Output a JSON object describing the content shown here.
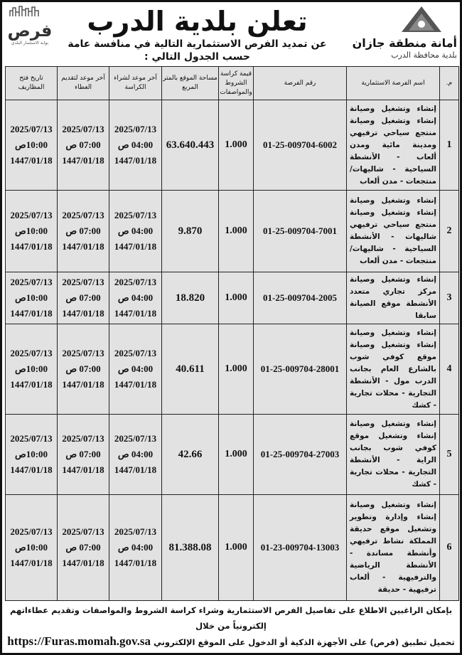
{
  "header": {
    "title": "تعلن بلدية الدرب",
    "subtitle": "عن تمديد الفرص الاستثمارية التالية في منافسة عامة حسب الجدول التالي :",
    "logo_right_name": "أمانة منطقة جازان",
    "logo_right_sub": "بلدية محافظة الدرب",
    "logo_left_name": "فرص",
    "logo_left_sub": "بوابة الاستثمار البلدي"
  },
  "table": {
    "columns": [
      "م.",
      "اسم الفرصة الاستثمارية",
      "رقم الفرصة",
      "قيمة كراسة الشروط والمواصفات",
      "مساحة الموقع بالمتر المربع",
      "آخر موعد لشراء الكراسة",
      "آخر موعد لتقديم العطاء",
      "تاريخ فتح المظاريف"
    ],
    "rows": [
      {
        "no": "1",
        "name": "إنشاء وتشغيل وصيانة إنشاء وتشغيل وصيانة منتجع سياحي ترفيهي ومدينة مائية ومدن ألعاب - الأنشطة السياحية - شاليهات/ منتجعات - مدن ألعاب",
        "id": "01-25-009704-6002",
        "price": "1.000",
        "area": "63.640.443",
        "buy": [
          "2025/07/13",
          "04:00 ص",
          "1447/01/18"
        ],
        "submit": [
          "2025/07/13",
          "07:00 ص",
          "1447/01/18"
        ],
        "open": [
          "2025/07/13",
          "10:00ص",
          "1447/01/18"
        ]
      },
      {
        "no": "2",
        "name": "إنشاء وتشغيل وصيانة إنشاء وتشغيل وصيانة منتجع سياحي ترفيهي شاليهات - الأنشطة السياحية - شاليهات/ منتجعات - مدن ألعاب",
        "id": "01-25-009704-7001",
        "price": "1.000",
        "area": "9.870",
        "buy": [
          "2025/07/13",
          "04:00 ص",
          "1447/01/18"
        ],
        "submit": [
          "2025/07/13",
          "07:00 ص",
          "1447/01/18"
        ],
        "open": [
          "2025/07/13",
          "10:00ص",
          "1447/01/18"
        ]
      },
      {
        "no": "3",
        "name": "إنشاء وتشغيل وصيانة مركز تجاري متعدد الأنشطة موقع الصيانة سابقا",
        "id": "01-25-009704-2005",
        "price": "1.000",
        "area": "18.820",
        "buy": [
          "2025/07/13",
          "04:00 ص",
          "1447/01/18"
        ],
        "submit": [
          "2025/07/13",
          "07:00 ص",
          "1447/01/18"
        ],
        "open": [
          "2025/07/13",
          "10:00ص",
          "1447/01/18"
        ]
      },
      {
        "no": "4",
        "name": "إنشاء وتشغيل وصيانة إنشاء وتشغيل وصيانة موقع كوفي شوب بالشارع العام بجانب الدرب مول - الأنشطة التجارية - محلات تجارية - كشك",
        "id": "01-25-009704-28001",
        "price": "1.000",
        "area": "40.611",
        "buy": [
          "2025/07/13",
          "04:00 ص",
          "1447/01/18"
        ],
        "submit": [
          "2025/07/13",
          "07:00 ص",
          "1447/01/18"
        ],
        "open": [
          "2025/07/13",
          "10:00ص",
          "1447/01/18"
        ]
      },
      {
        "no": "5",
        "name": "إنشاء وتشغيل وصيانة إنشاء وتشغيل موقع كوفي شوب بجانب الراية - الأنشطة التجارية - محلات تجارية - كشك",
        "id": "01-25-009704-27003",
        "price": "1.000",
        "area": "42.66",
        "buy": [
          "2025/07/13",
          "04:00 ص",
          "1447/01/18"
        ],
        "submit": [
          "2025/07/13",
          "07:00 ص",
          "1447/01/18"
        ],
        "open": [
          "2025/07/13",
          "10:00ص",
          "1447/01/18"
        ]
      },
      {
        "no": "6",
        "name": "إنشاء وتشغيل وصيانة إنشاء وإدارة وتطوير وتشغيل موقع حديقة المملكة نشاط ترفيهي وأنشطة مساندة - الأنشطة الرياضية والترفيهية - ألعاب ترفيهية - حديقة",
        "id": "01-23-009704-13003",
        "price": "1.000",
        "area": "81.388.08",
        "buy": [
          "2025/07/13",
          "04:00 ص",
          "1447/01/18"
        ],
        "submit": [
          "2025/07/13",
          "07:00 ص",
          "1447/01/18"
        ],
        "open": [
          "2025/07/13",
          "10:00ص",
          "1447/01/18"
        ]
      }
    ]
  },
  "footer": {
    "line1": "بإمكان الراغبين الاطلاع على تفاصيل الفرص الاستثمارية وشراء كراسة الشروط والمواصفات وتقديم عطاءاتهم إلكترونياً من خلال",
    "line2": "تحميل تطبيق (فرص) على الأجهزة الذكية أو الدخول على الموقع الإلكتروني",
    "url": "https://Furas.momah.gov.sa"
  }
}
